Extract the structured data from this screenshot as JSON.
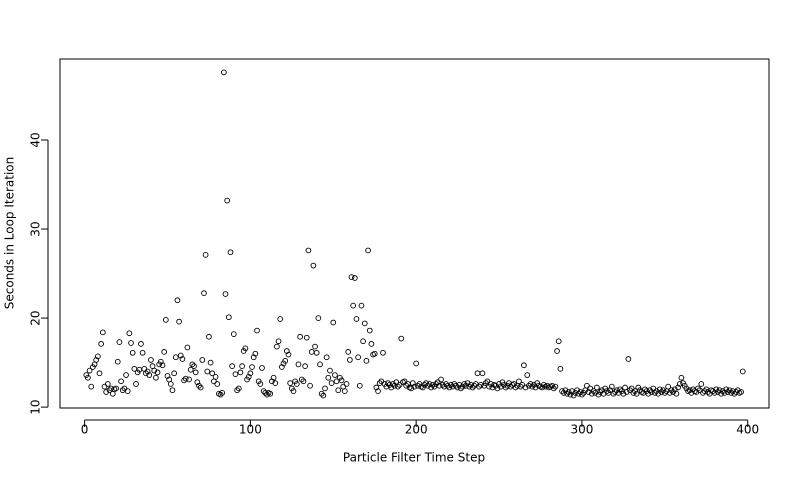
{
  "chart_data": {
    "type": "scatter",
    "x_label": "Particle Filter Time Step",
    "y_label": "Seconds in Loop Iteration",
    "xlim": [
      -14.84,
      412.84
    ],
    "ylim": [
      9.9,
      49.1
    ],
    "xticks": [
      0,
      100,
      200,
      300,
      400
    ],
    "yticks": [
      10,
      20,
      30,
      40
    ],
    "color": "#000000",
    "x": [
      1,
      2,
      3,
      4,
      5,
      6,
      7,
      8,
      9,
      10,
      11,
      12,
      13,
      14,
      15,
      16,
      17,
      18,
      19,
      20,
      21,
      22,
      23,
      24,
      25,
      26,
      27,
      28,
      29,
      30,
      31,
      32,
      33,
      34,
      35,
      36,
      37,
      38,
      39,
      40,
      41,
      42,
      43,
      44,
      45,
      46,
      47,
      48,
      49,
      50,
      51,
      52,
      53,
      54,
      55,
      56,
      57,
      58,
      59,
      60,
      61,
      62,
      63,
      64,
      65,
      66,
      67,
      68,
      69,
      70,
      71,
      72,
      73,
      74,
      75,
      76,
      77,
      78,
      79,
      80,
      81,
      82,
      83,
      84,
      85,
      86,
      87,
      88,
      89,
      90,
      91,
      92,
      93,
      94,
      95,
      96,
      97,
      98,
      99,
      100,
      101,
      102,
      103,
      104,
      105,
      106,
      107,
      108,
      109,
      110,
      111,
      112,
      113,
      114,
      115,
      116,
      117,
      118,
      119,
      120,
      121,
      122,
      123,
      124,
      125,
      126,
      127,
      128,
      129,
      130,
      131,
      132,
      133,
      134,
      135,
      136,
      137,
      138,
      139,
      140,
      141,
      142,
      143,
      144,
      145,
      146,
      147,
      148,
      149,
      150,
      151,
      152,
      153,
      154,
      155,
      156,
      157,
      158,
      159,
      160,
      161,
      162,
      163,
      164,
      165,
      166,
      167,
      168,
      169,
      170,
      171,
      172,
      173,
      174,
      175,
      176,
      177,
      178,
      179,
      180,
      181,
      182,
      183,
      184,
      185,
      186,
      187,
      188,
      189,
      190,
      191,
      192,
      193,
      194,
      195,
      196,
      197,
      198,
      199,
      200,
      201,
      202,
      203,
      204,
      205,
      206,
      207,
      208,
      209,
      210,
      211,
      212,
      213,
      214,
      215,
      216,
      217,
      218,
      219,
      220,
      221,
      222,
      223,
      224,
      225,
      226,
      227,
      228,
      229,
      230,
      231,
      232,
      233,
      234,
      235,
      236,
      237,
      238,
      239,
      240,
      241,
      242,
      243,
      244,
      245,
      246,
      247,
      248,
      249,
      250,
      251,
      252,
      253,
      254,
      255,
      256,
      257,
      258,
      259,
      260,
      261,
      262,
      263,
      264,
      265,
      266,
      267,
      268,
      269,
      270,
      271,
      272,
      273,
      274,
      275,
      276,
      277,
      278,
      279,
      280,
      281,
      282,
      283,
      284,
      285,
      286,
      287,
      288,
      289,
      290,
      291,
      292,
      293,
      294,
      295,
      296,
      297,
      298,
      299,
      300,
      301,
      302,
      303,
      304,
      305,
      306,
      307,
      308,
      309,
      310,
      311,
      312,
      313,
      314,
      315,
      316,
      317,
      318,
      319,
      320,
      321,
      322,
      323,
      324,
      325,
      326,
      327,
      328,
      329,
      330,
      331,
      332,
      333,
      334,
      335,
      336,
      337,
      338,
      339,
      340,
      341,
      342,
      343,
      344,
      345,
      346,
      347,
      348,
      349,
      350,
      351,
      352,
      353,
      354,
      355,
      356,
      357,
      358,
      359,
      360,
      361,
      362,
      363,
      364,
      365,
      366,
      367,
      368,
      369,
      370,
      371,
      372,
      373,
      374,
      375,
      376,
      377,
      378,
      379,
      380,
      381,
      382,
      383,
      384,
      385,
      386,
      387,
      388,
      389,
      390,
      391,
      392,
      393,
      394,
      395,
      396,
      397
    ],
    "values": [
      13.6,
      13.3,
      14.1,
      12.3,
      14.5,
      14.8,
      15.3,
      15.7,
      13.8,
      17.1,
      18.4,
      12.3,
      11.7,
      12.6,
      11.9,
      12.1,
      11.5,
      12.0,
      12.1,
      15.1,
      17.3,
      12.9,
      11.9,
      12.1,
      13.6,
      11.8,
      18.3,
      17.2,
      16.1,
      14.3,
      12.6,
      13.9,
      14.2,
      17.1,
      16.1,
      14.3,
      13.8,
      14.0,
      13.6,
      15.3,
      14.6,
      14.1,
      13.3,
      13.9,
      14.8,
      15.1,
      14.7,
      16.2,
      19.8,
      13.5,
      13.1,
      12.6,
      11.9,
      13.8,
      15.6,
      22.0,
      19.6,
      15.8,
      15.4,
      13.0,
      13.2,
      16.7,
      13.1,
      14.2,
      14.8,
      14.6,
      13.9,
      12.8,
      12.4,
      12.2,
      15.3,
      22.8,
      27.1,
      14.0,
      17.9,
      15.0,
      13.8,
      12.9,
      13.4,
      12.6,
      11.5,
      11.4,
      11.6,
      47.6,
      22.7,
      33.2,
      20.1,
      27.4,
      14.6,
      18.2,
      13.7,
      11.9,
      12.1,
      13.9,
      14.6,
      16.3,
      16.6,
      13.1,
      13.4,
      13.8,
      14.5,
      15.6,
      16.0,
      18.6,
      12.9,
      12.6,
      14.4,
      11.8,
      11.6,
      11.4,
      11.6,
      11.5,
      12.9,
      13.3,
      12.7,
      16.8,
      17.4,
      19.9,
      14.5,
      14.9,
      15.2,
      16.3,
      15.9,
      12.7,
      12.1,
      11.8,
      12.9,
      12.6,
      14.8,
      17.9,
      13.1,
      12.9,
      14.6,
      17.8,
      27.6,
      12.4,
      16.2,
      25.9,
      16.8,
      16.1,
      20.0,
      14.8,
      11.5,
      11.3,
      12.1,
      15.6,
      13.3,
      14.1,
      12.7,
      19.5,
      13.6,
      12.9,
      11.9,
      13.3,
      13.0,
      12.3,
      11.8,
      12.6,
      16.2,
      15.3,
      24.6,
      21.4,
      24.5,
      19.9,
      15.6,
      12.4,
      21.4,
      17.4,
      19.4,
      15.2,
      27.6,
      18.6,
      17.1,
      15.9,
      16.0,
      12.2,
      11.8,
      12.7,
      12.9,
      16.1,
      12.6,
      12.3,
      12.7,
      12.5,
      12.2,
      12.6,
      12.4,
      12.8,
      12.3,
      12.5,
      17.7,
      12.8,
      12.9,
      12.4,
      12.6,
      12.2,
      12.1,
      12.7,
      12.3,
      14.9,
      12.4,
      12.6,
      12.3,
      12.2,
      12.5,
      12.7,
      12.4,
      12.6,
      12.2,
      12.5,
      12.3,
      12.6,
      12.8,
      12.4,
      13.1,
      12.5,
      12.3,
      12.6,
      12.4,
      12.2,
      12.5,
      12.3,
      12.6,
      12.4,
      12.2,
      12.5,
      12.1,
      12.3,
      12.6,
      12.4,
      12.7,
      12.3,
      12.5,
      12.2,
      12.4,
      12.6,
      13.8,
      12.3,
      12.5,
      13.8,
      12.4,
      12.7,
      12.9,
      12.3,
      12.6,
      12.2,
      12.5,
      12.4,
      12.1,
      12.6,
      12.3,
      12.8,
      12.5,
      12.2,
      12.4,
      12.7,
      12.3,
      12.5,
      12.6,
      12.2,
      12.4,
      12.9,
      12.3,
      12.5,
      14.7,
      12.2,
      13.6,
      12.4,
      12.6,
      12.3,
      12.5,
      12.2,
      12.7,
      12.4,
      12.3,
      12.2,
      12.5,
      12.3,
      12.4,
      12.2,
      12.3,
      12.4,
      12.1,
      12.3,
      16.3,
      17.4,
      14.3,
      11.8,
      11.6,
      11.9,
      11.5,
      11.7,
      11.4,
      11.8,
      11.3,
      11.6,
      11.9,
      11.5,
      11.7,
      11.4,
      11.6,
      11.9,
      12.4,
      11.7,
      12.1,
      11.5,
      11.8,
      11.6,
      12.2,
      11.4,
      11.7,
      11.9,
      11.5,
      12.1,
      11.8,
      11.6,
      11.9,
      12.3,
      11.5,
      11.7,
      11.9,
      11.6,
      12.0,
      11.8,
      11.5,
      12.2,
      11.7,
      15.4,
      11.9,
      12.1,
      11.6,
      11.8,
      11.5,
      12.2,
      11.9,
      11.7,
      11.6,
      12.0,
      11.8,
      11.5,
      11.9,
      11.7,
      12.1,
      11.6,
      11.8,
      11.5,
      12.0,
      11.7,
      11.9,
      11.6,
      11.8,
      12.3,
      11.6,
      11.9,
      11.7,
      12.0,
      11.5,
      12.2,
      12.6,
      13.3,
      12.7,
      12.4,
      12.1,
      11.8,
      11.9,
      11.6,
      12.0,
      11.8,
      11.7,
      12.1,
      11.9,
      12.6,
      11.6,
      11.8,
      12.0,
      11.7,
      11.5,
      11.9,
      11.8,
      11.6,
      12.0,
      11.7,
      11.9,
      11.5,
      11.8,
      11.6,
      12.0,
      11.7,
      11.9,
      11.6,
      11.8,
      11.5,
      11.7,
      11.9,
      11.6,
      11.7,
      14.0
    ]
  }
}
